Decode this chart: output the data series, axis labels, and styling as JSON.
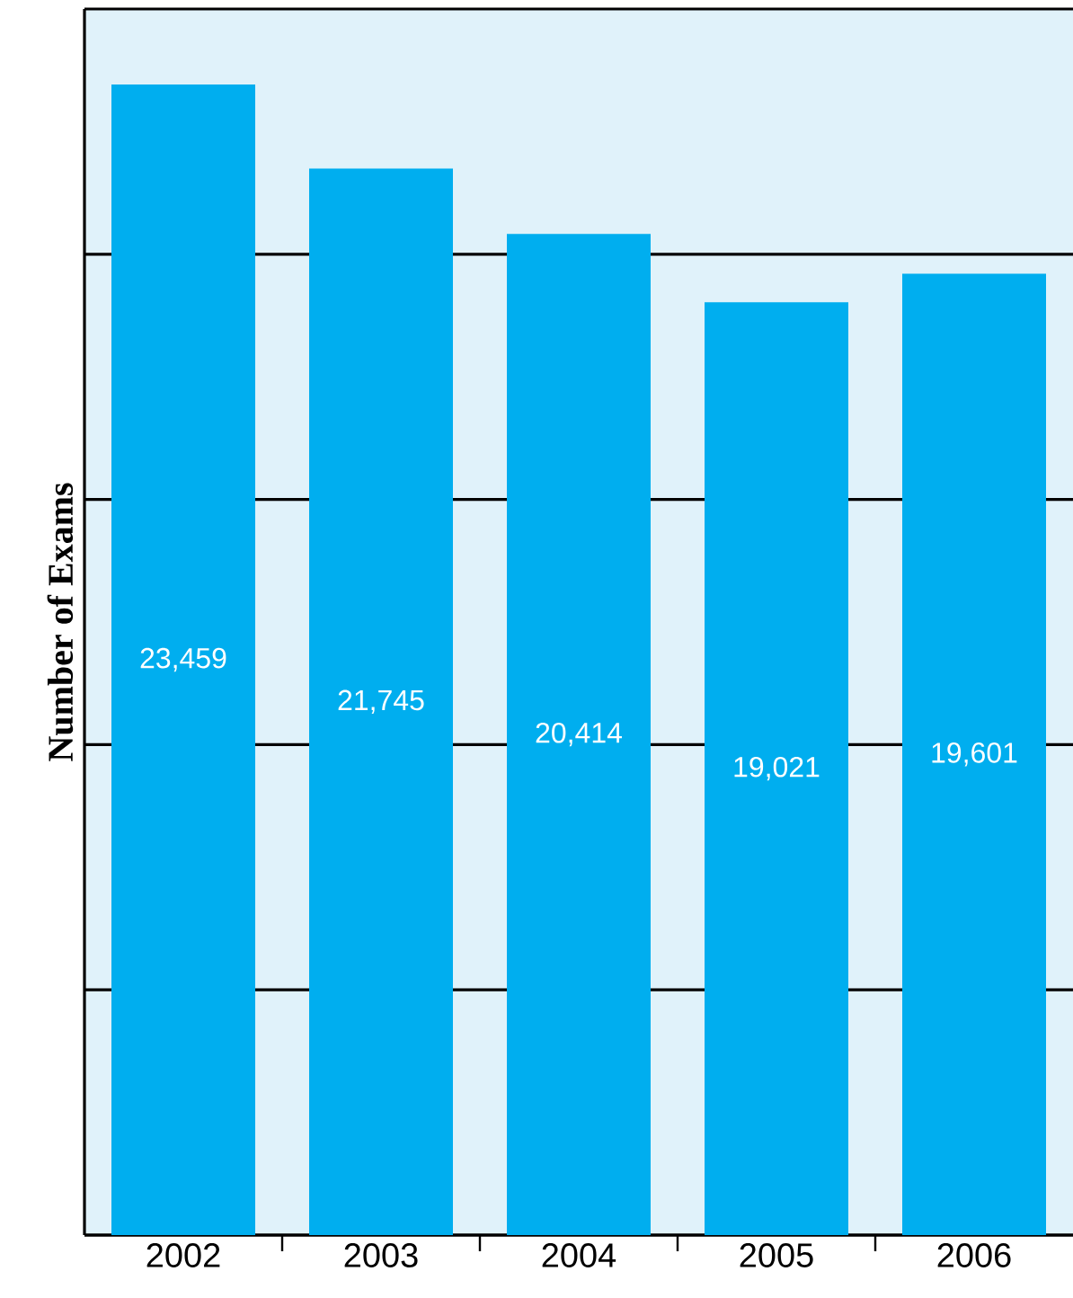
{
  "chart_data": {
    "type": "bar",
    "ylabel": "Number of Exams",
    "categories": [
      "2002",
      "2003",
      "2004",
      "2005",
      "2006"
    ],
    "values": [
      23459,
      21745,
      20414,
      19021,
      19601
    ],
    "value_labels": [
      "23,459",
      "21,745",
      "20,414",
      "19,021",
      "19,601"
    ],
    "color": "#00aeef",
    "ylim": [
      0,
      25000
    ],
    "yticks": [
      {
        "value": 0,
        "label": null
      },
      {
        "value": 5000,
        "label": null
      },
      {
        "value": 10000,
        "label": null
      },
      {
        "value": 15000,
        "label": null
      },
      {
        "value": 20000,
        "label": null
      },
      {
        "value": 25000,
        "label": null
      }
    ],
    "grid": "y",
    "tick_labels": "x"
  }
}
